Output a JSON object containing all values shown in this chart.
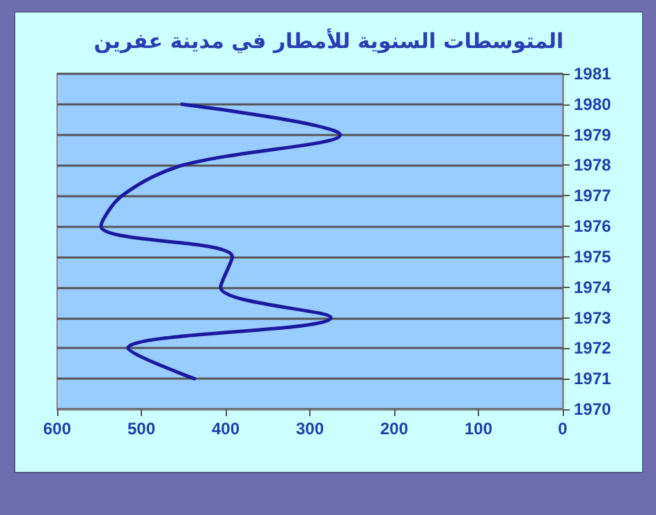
{
  "chart_data": {
    "type": "line",
    "orientation": "horizontal",
    "title": "المتوسطات السنوية للأمطار في مدينة عفرين",
    "x": [
      1971,
      1972,
      1973,
      1974,
      1975,
      1976,
      1977,
      1978,
      1979,
      1980
    ],
    "series": [
      {
        "color": "#1a1a9e",
        "values": [
          437,
          516,
          275,
          406,
          392,
          548,
          523,
          451,
          264,
          452
        ]
      }
    ],
    "xlim": [
      600,
      0
    ],
    "xticks": [
      600,
      500,
      400,
      300,
      200,
      100,
      0
    ],
    "ylim": [
      1970,
      1981
    ],
    "yticks": [
      1970,
      1971,
      1972,
      1973,
      1974,
      1975,
      1976,
      1977,
      1978,
      1979,
      1980,
      1981
    ],
    "grid": "y",
    "marker": "none",
    "line_style": "solid"
  }
}
